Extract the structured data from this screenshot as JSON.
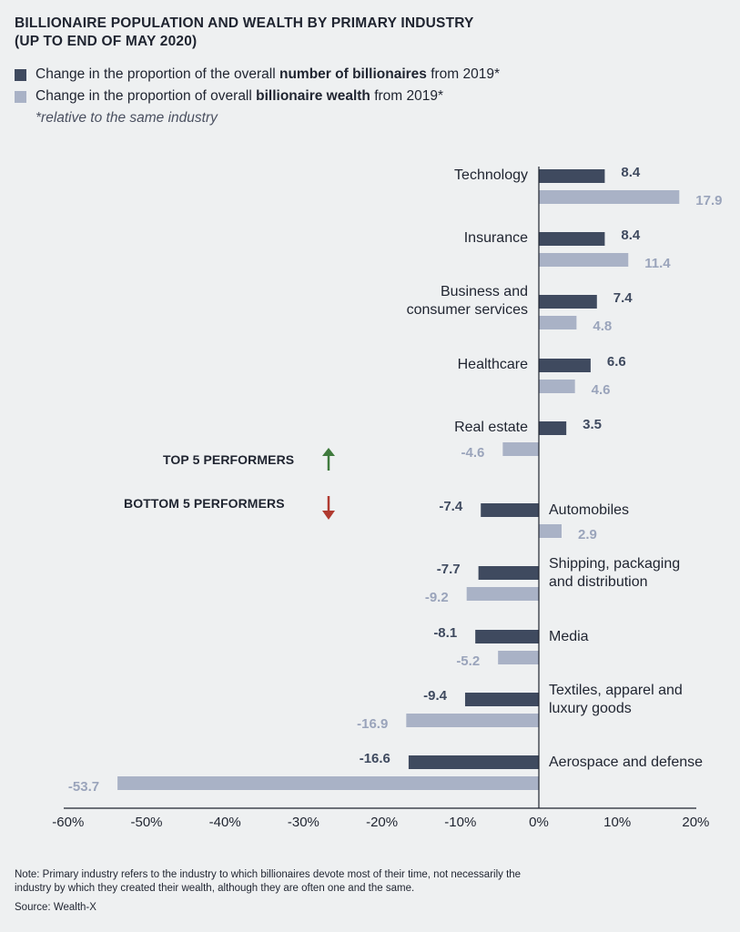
{
  "title_line1": "BILLIONAIRE POPULATION AND WEALTH BY PRIMARY INDUSTRY",
  "title_line2": "(UP TO END OF MAY 2020)",
  "legend": {
    "series1_prefix": "Change in the proportion of the overall ",
    "series1_bold": "number of billionaires",
    "series1_suffix": " from 2019*",
    "series2_prefix": "Change in the proportion of overall ",
    "series2_bold": "billionaire wealth",
    "series2_suffix": " from 2019*",
    "note": "*relative to the same industry"
  },
  "labels": {
    "top_performers": "TOP 5 PERFORMERS",
    "bottom_performers": "BOTTOM 5 PERFORMERS"
  },
  "colors": {
    "background": "#eef0f1",
    "number_series": "#3f4a5f",
    "wealth_series": "#a9b2c6",
    "wealth_label": "#9aa4bb",
    "arrow_up": "#3f7a3d",
    "arrow_down": "#b03a30"
  },
  "icons": {
    "up": "up-arrow-icon",
    "down": "down-arrow-icon"
  },
  "chart_data": {
    "type": "bar",
    "orientation": "horizontal",
    "categories": [
      [
        "Technology"
      ],
      [
        "Insurance"
      ],
      [
        "Business and",
        "consumer services"
      ],
      [
        "Healthcare"
      ],
      [
        "Real estate"
      ],
      [
        "Automobiles"
      ],
      [
        "Shipping, packaging",
        "and distribution"
      ],
      [
        "Media"
      ],
      [
        "Textiles, apparel and",
        "luxury goods"
      ],
      [
        "Aerospace and defense"
      ]
    ],
    "series": [
      {
        "values": [
          8.4,
          8.4,
          7.4,
          6.6,
          3.5,
          -7.4,
          -7.7,
          -8.1,
          -9.4,
          -16.6
        ]
      },
      {
        "values": [
          17.9,
          11.4,
          4.8,
          4.6,
          -4.6,
          2.9,
          -9.2,
          -5.2,
          -16.9,
          -53.7
        ]
      }
    ],
    "xticks": [
      "-60%",
      "-50%",
      "-40%",
      "-30%",
      "-20%",
      "-10%",
      "0%",
      "10%",
      "20%"
    ],
    "xlim": [
      -60,
      20
    ],
    "grid": false,
    "legend_position": "top-left"
  },
  "footer": {
    "note_line1": "Note: Primary industry refers to the industry to which billionaires devote most of their time, not necessarily the",
    "note_line2": "industry by which they created their wealth, although they are often one and the same.",
    "source": "Source: Wealth-X"
  }
}
